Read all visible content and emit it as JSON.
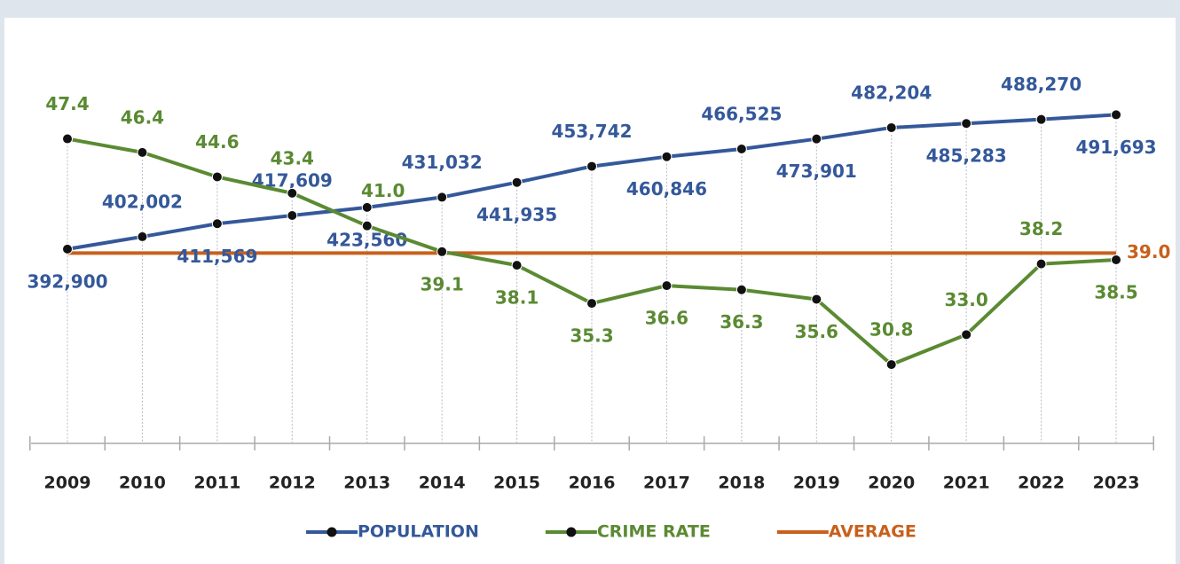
{
  "chart_data": {
    "type": "line",
    "categories": [
      "2009",
      "2010",
      "2011",
      "2012",
      "2013",
      "2014",
      "2015",
      "2016",
      "2017",
      "2018",
      "2019",
      "2020",
      "2021",
      "2022",
      "2023"
    ],
    "series": [
      {
        "name": "POPULATION",
        "color": "#34589a",
        "values": [
          392900,
          402002,
          411569,
          417609,
          423560,
          431032,
          441935,
          453742,
          460846,
          466525,
          473901,
          482204,
          485283,
          488270,
          491693
        ],
        "value_labels": [
          "392,900",
          "402,002",
          "411,569",
          "417,609",
          "423,560",
          "431,032",
          "441,935",
          "453,742",
          "460,846",
          "466,525",
          "473,901",
          "482,204",
          "485,283",
          "488,270",
          "491,693"
        ]
      },
      {
        "name": "CRIME RATE",
        "color": "#5a8a32",
        "axis": "y2",
        "values": [
          47.4,
          46.4,
          44.6,
          43.4,
          41.0,
          39.1,
          38.1,
          35.3,
          36.6,
          36.3,
          35.6,
          30.8,
          33.0,
          38.2,
          38.5
        ],
        "value_labels": [
          "47.4",
          "46.4",
          "44.6",
          "43.4",
          "41.0",
          "39.1",
          "38.1",
          "35.3",
          "36.6",
          "36.3",
          "35.6",
          "30.8",
          "33.0",
          "38.2",
          "38.5"
        ]
      }
    ],
    "average": {
      "name": "AVERAGE",
      "color": "#c8601c",
      "value": 39.0,
      "value_label": "39.0",
      "axis": "y2"
    },
    "ylim": [
      250000,
      550000
    ],
    "y2lim": [
      25,
      55
    ]
  }
}
